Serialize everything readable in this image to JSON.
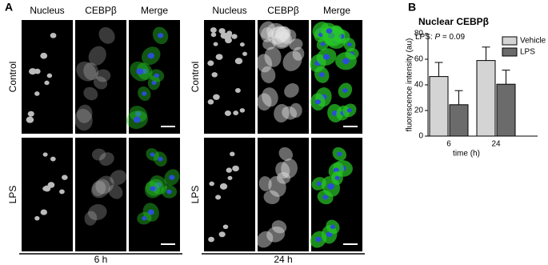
{
  "panel_labels": [
    "A",
    "B"
  ],
  "image_panel": {
    "groups": [
      {
        "columns": [
          "Nucleus",
          "CEBPβ",
          "Merge"
        ],
        "rows": [
          "Control",
          "LPS"
        ],
        "time": "6 h"
      },
      {
        "columns": [
          "Nucleus",
          "CEBPβ",
          "Merge"
        ],
        "rows": [
          "Control",
          "LPS"
        ],
        "time": "24 h"
      }
    ]
  },
  "chart_data": {
    "type": "bar",
    "title": "Nuclear CEBPβ",
    "annotation": [
      "LPS: ",
      "P",
      " = 0.09"
    ],
    "ylabel": "fluorescence intensity (au)",
    "xlabel": "time (h)",
    "categories": [
      "6",
      "24"
    ],
    "series": [
      {
        "name": "Vehicle",
        "color": "#d4d4d4",
        "values": [
          46.5,
          59
        ],
        "errors": [
          11,
          10.5
        ]
      },
      {
        "name": "LPS",
        "color": "#6b6b6b",
        "values": [
          24.5,
          40.5
        ],
        "errors": [
          11,
          11
        ]
      }
    ],
    "ylim": [
      0,
      80
    ],
    "yticks": [
      0,
      20,
      40,
      60,
      80
    ],
    "legend": "upper right"
  }
}
